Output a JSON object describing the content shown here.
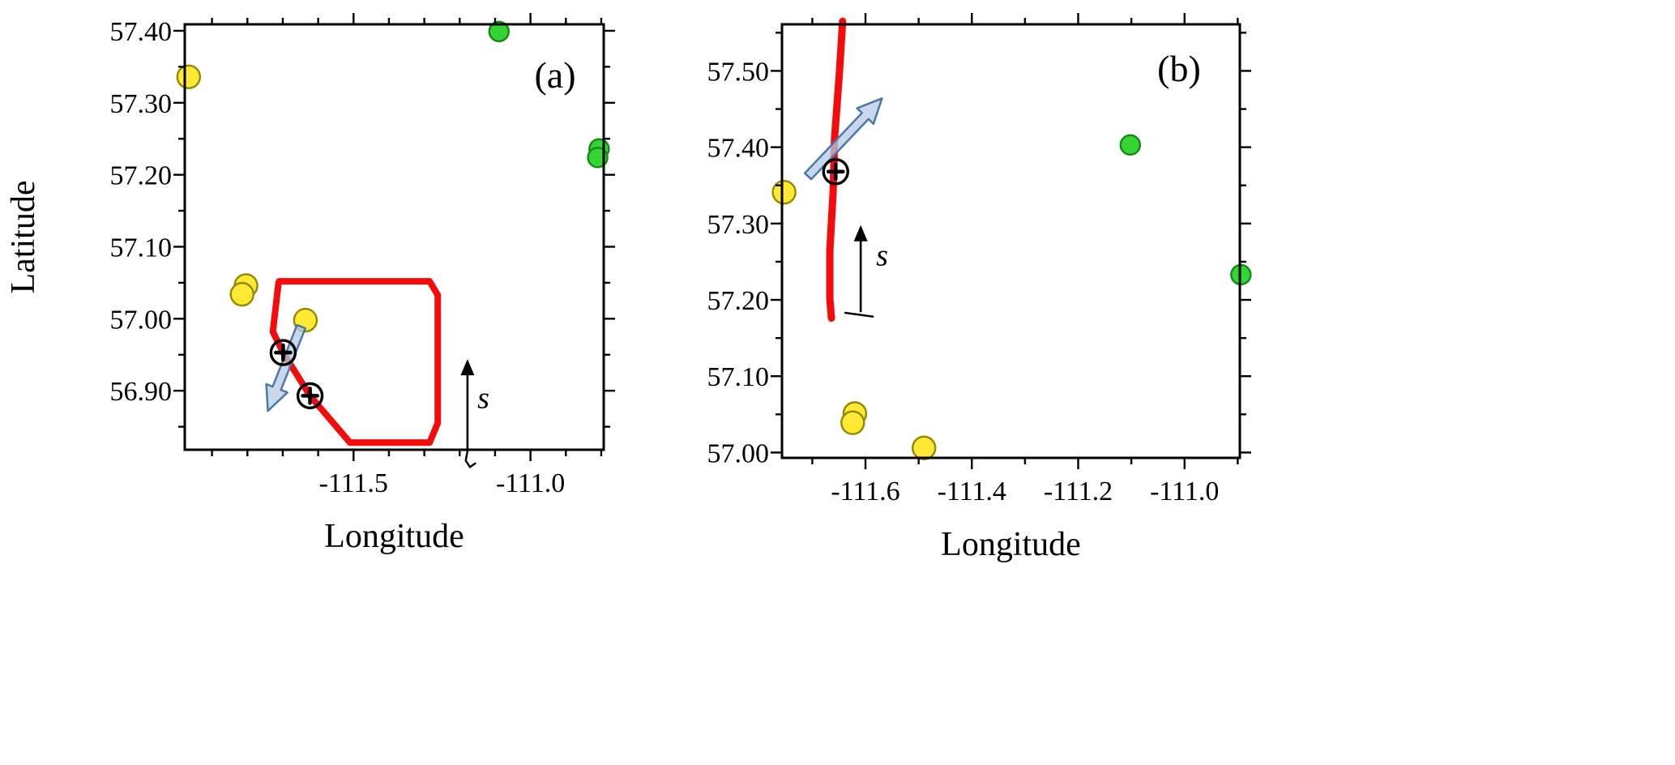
{
  "figure": {
    "background": "#ffffff"
  },
  "chart_data": [
    {
      "type": "scatter",
      "panel_label": "(a)",
      "xlabel": "Longitude",
      "ylabel": "Latitude",
      "xlim": [
        -111.977,
        -110.793
      ],
      "ylim": [
        56.818,
        57.409
      ],
      "xticks_major": [
        {
          "v": -111.5,
          "label": "-111.5"
        },
        {
          "v": -111.0,
          "label": "-111.0"
        }
      ],
      "xtick_minor_step": 0.1,
      "yticks_major": [
        {
          "v": 56.9,
          "label": "56.90"
        },
        {
          "v": 57.0,
          "label": "57.00"
        },
        {
          "v": 57.1,
          "label": "57.10"
        },
        {
          "v": 57.2,
          "label": "57.20"
        },
        {
          "v": 57.3,
          "label": "57.30"
        },
        {
          "v": 57.4,
          "label": "57.40"
        }
      ],
      "ytick_minor_step": 0.05,
      "series": [
        {
          "name": "yellow-stations",
          "marker": "circle",
          "fill": "#ffe935",
          "stroke": "#8f8a00",
          "radius": 14,
          "points": [
            [
              -111.966,
              57.336
            ],
            [
              -111.804,
              57.046
            ],
            [
              -111.815,
              57.034
            ],
            [
              -111.636,
              56.998
            ]
          ]
        },
        {
          "name": "green-stations",
          "marker": "circle",
          "fill": "#35d435",
          "stroke": "#128a12",
          "radius": 12,
          "points": [
            [
              -111.089,
              57.399
            ],
            [
              -110.806,
              57.236
            ],
            [
              -110.81,
              57.224
            ]
          ]
        },
        {
          "name": "stack-markers",
          "marker": "circle-plus",
          "stroke": "#000000",
          "radius": 15,
          "points": [
            [
              -111.699,
              56.953
            ],
            [
              -111.623,
              56.893
            ]
          ]
        }
      ],
      "flight_track": {
        "color": "#f40b0b",
        "width": 8,
        "points": [
          [
            -111.71,
            57.052
          ],
          [
            -111.285,
            57.052
          ],
          [
            -111.262,
            57.033
          ],
          [
            -111.262,
            56.855
          ],
          [
            -111.285,
            56.828
          ],
          [
            -111.51,
            56.828
          ],
          [
            -111.623,
            56.893
          ],
          [
            -111.699,
            56.953
          ],
          [
            -111.728,
            56.982
          ],
          [
            -111.712,
            57.05
          ]
        ]
      },
      "wind_arrow": {
        "from": [
          -111.648,
          56.989
        ],
        "to": [
          -111.742,
          56.872
        ],
        "fill": "#b6cbe3",
        "stroke": "#4a76ac"
      },
      "s_marker": {
        "label": "s",
        "base": [
          -111.178,
          56.816
        ],
        "tip": [
          -111.178,
          56.944
        ],
        "tail": [
          [
            -111.178,
            56.816
          ],
          [
            -111.183,
            56.803
          ],
          [
            -111.171,
            56.794
          ],
          [
            -111.156,
            56.799
          ]
        ],
        "label_pos": [
          -111.15,
          56.876
        ]
      }
    },
    {
      "type": "scatter",
      "panel_label": "(b)",
      "xlabel": "Longitude",
      "ylabel": "",
      "xlim": [
        -111.757,
        -110.896
      ],
      "ylim": [
        56.993,
        57.561
      ],
      "xticks_major": [
        {
          "v": -111.6,
          "label": "-111.6"
        },
        {
          "v": -111.4,
          "label": "-111.4"
        },
        {
          "v": -111.2,
          "label": "-111.2"
        },
        {
          "v": -111.0,
          "label": "-111.0"
        }
      ],
      "xtick_minor_step": 0.1,
      "yticks_major": [
        {
          "v": 57.0,
          "label": "57.00"
        },
        {
          "v": 57.1,
          "label": "57.10"
        },
        {
          "v": 57.2,
          "label": "57.20"
        },
        {
          "v": 57.3,
          "label": "57.30"
        },
        {
          "v": 57.4,
          "label": "57.40"
        },
        {
          "v": 57.5,
          "label": "57.50"
        }
      ],
      "ytick_minor_step": 0.05,
      "series": [
        {
          "name": "yellow-stations",
          "marker": "circle",
          "fill": "#ffe935",
          "stroke": "#8f8a00",
          "radius": 14,
          "points": [
            [
              -111.753,
              57.341
            ],
            [
              -111.62,
              57.051
            ],
            [
              -111.624,
              57.039
            ],
            [
              -111.49,
              57.006
            ]
          ]
        },
        {
          "name": "green-stations",
          "marker": "circle",
          "fill": "#35d435",
          "stroke": "#128a12",
          "radius": 12,
          "points": [
            [
              -111.102,
              57.403
            ],
            [
              -110.894,
              57.233
            ]
          ]
        },
        {
          "name": "stack-markers",
          "marker": "circle-plus",
          "stroke": "#000000",
          "radius": 15,
          "points": [
            [
              -111.656,
              57.368
            ]
          ]
        }
      ],
      "flight_track": {
        "color": "#f40b0b",
        "width": 9,
        "points": [
          [
            -111.643,
            57.565
          ],
          [
            -111.649,
            57.498
          ],
          [
            -111.658,
            57.413
          ],
          [
            -111.661,
            57.339
          ],
          [
            -111.667,
            57.265
          ],
          [
            -111.667,
            57.201
          ],
          [
            -111.664,
            57.176
          ]
        ]
      },
      "wind_arrow": {
        "from": [
          -111.708,
          57.362
        ],
        "to": [
          -111.569,
          57.464
        ],
        "fill": "#b6cbe3",
        "stroke": "#4a76ac"
      },
      "s_marker": {
        "label": "s",
        "base": [
          -111.609,
          57.184
        ],
        "tip": [
          -111.609,
          57.298
        ],
        "tail": [
          [
            -111.638,
            57.183
          ],
          [
            -111.586,
            57.178
          ]
        ],
        "label_pos": [
          -111.58,
          57.245
        ]
      }
    }
  ]
}
